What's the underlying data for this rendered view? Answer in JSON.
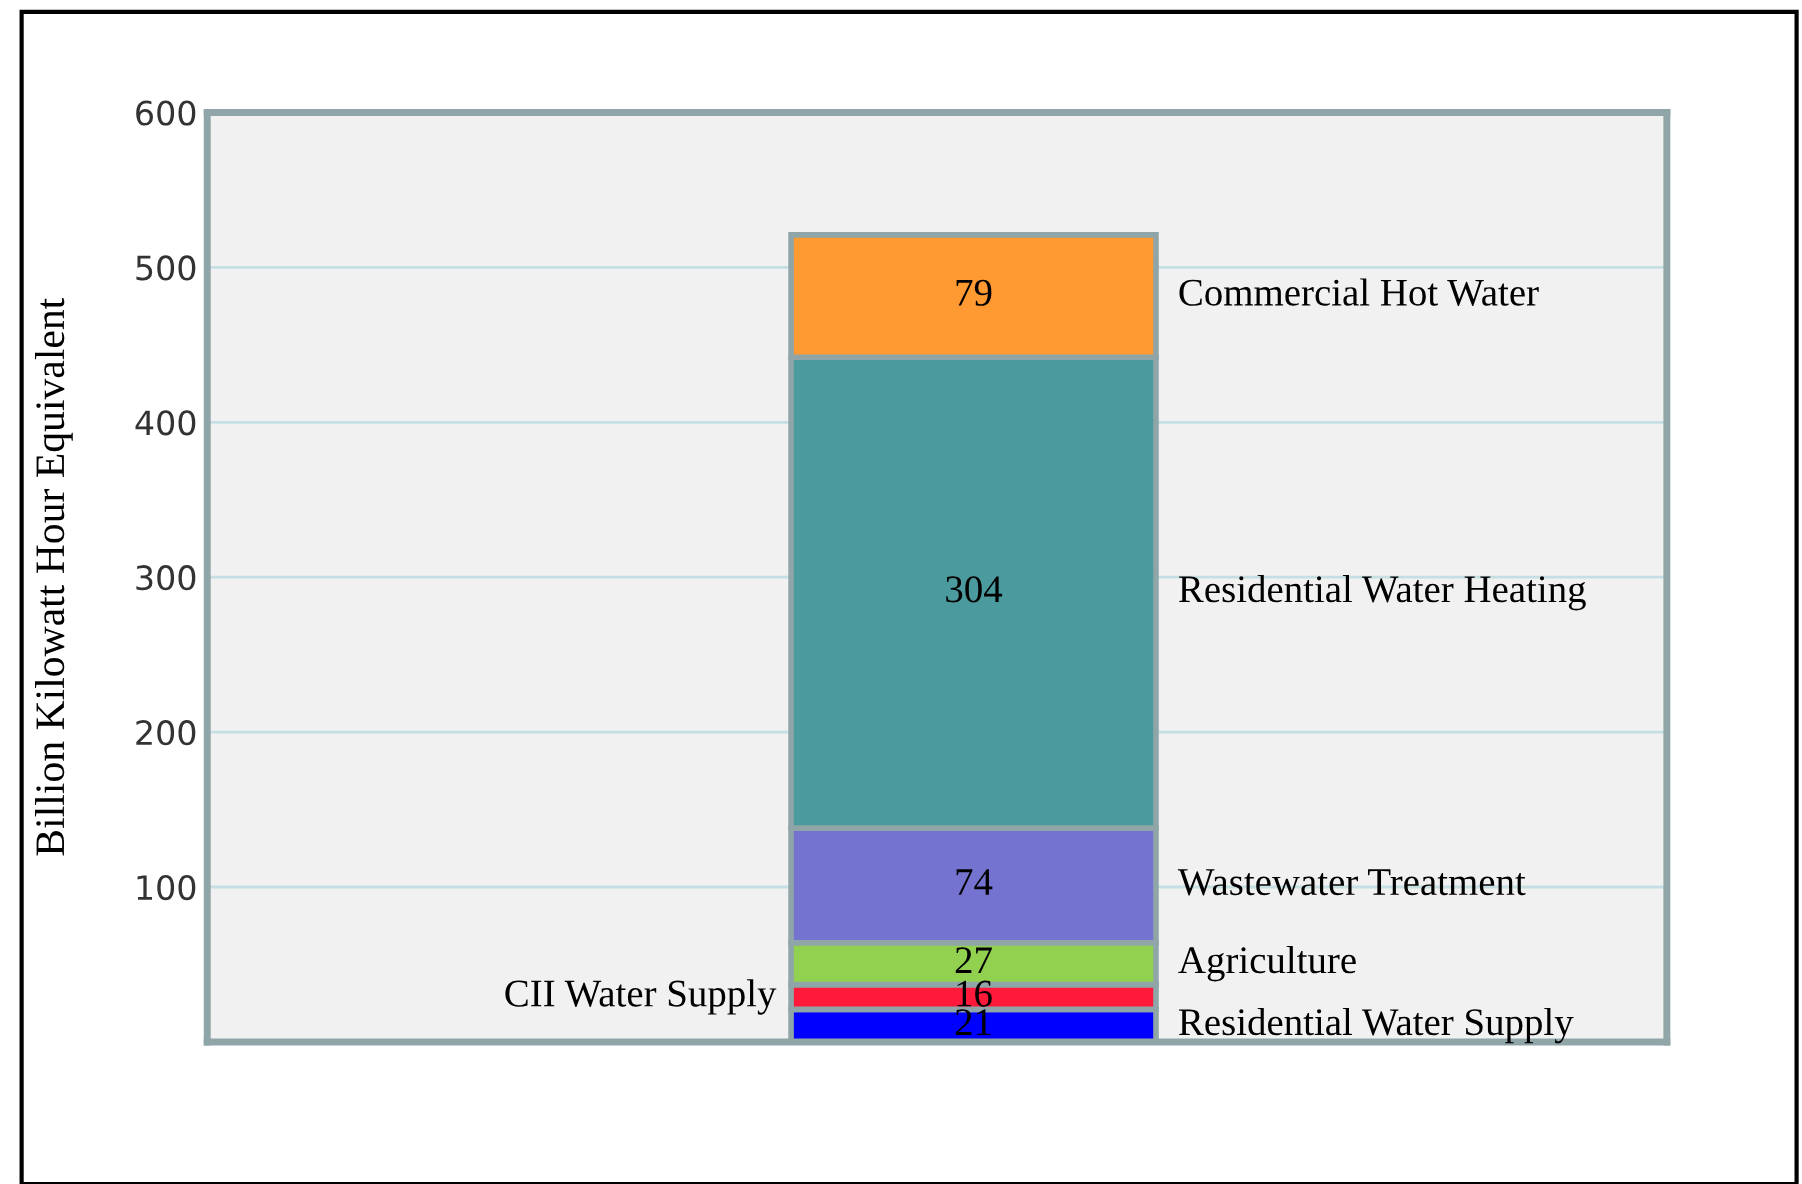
{
  "chart_data": {
    "type": "bar",
    "stacked": true,
    "ylabel": "Billion Kilowatt Hour Equivalent",
    "categories": [
      null
    ],
    "series": [
      {
        "name": "Residential Water Supply",
        "color": "#0000ff",
        "values": [
          21
        ]
      },
      {
        "name": "CII Water Supply",
        "color": "#ff1a3c",
        "values": [
          16
        ]
      },
      {
        "name": "Agriculture",
        "color": "#92d050",
        "values": [
          27
        ]
      },
      {
        "name": "Wastewater Treatment",
        "color": "#7474d0",
        "values": [
          74
        ]
      },
      {
        "name": "Residential Water Heating",
        "color": "#4a9a9e",
        "values": [
          304
        ]
      },
      {
        "name": "Commercial Hot Water",
        "color": "#ff9a33",
        "values": [
          79
        ]
      }
    ],
    "data_labels": true,
    "ylim": [
      0,
      600
    ],
    "yticks": [
      {
        "value": 0,
        "label": null
      },
      100,
      200,
      300,
      400,
      500,
      600
    ],
    "grid": "y",
    "legend": false
  }
}
